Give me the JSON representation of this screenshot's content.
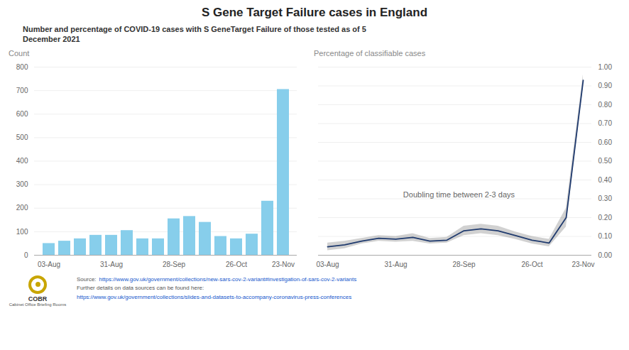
{
  "title": "S Gene Target Failure cases in England",
  "subtitle": "Number and percentage of COVID-19 cases with S GeneTarget Failure of those tested as of 5\nDecember 2021",
  "footer": [
    [
      "Source:",
      "https://www.gov.uk/government/collections/new-sars-cov-2-variant#investigation-of-sars-cov-2-variants"
    ],
    [
      "Further details on data sources can be found here:"
    ],
    [
      "https://www.gov.uk/government/collections/slides-and-datasets-to-accompany-coronavirus-press-conferences"
    ]
  ],
  "logo": [
    "COBR",
    "Cabinet Office Briefing Rooms"
  ],
  "chart_data": [
    {
      "type": "bar",
      "categories": [
        "03-Aug",
        null,
        null,
        null,
        "31-Aug",
        null,
        null,
        null,
        "28-Sep",
        null,
        null,
        null,
        "26-Oct",
        null,
        null,
        "23-Nov"
      ],
      "values": [
        50,
        60,
        70,
        85,
        85,
        105,
        70,
        70,
        155,
        165,
        140,
        80,
        70,
        90,
        230,
        705
      ],
      "color": "#87CEEB",
      "ylim": [
        0,
        800
      ],
      "yticks": [
        0,
        100,
        200,
        300,
        400,
        500,
        600,
        700,
        800
      ],
      "ylabel": "Count",
      "grid": true
    },
    {
      "type": "line",
      "categories": [
        "03-Aug",
        null,
        null,
        null,
        "31-Aug",
        null,
        null,
        null,
        "28-Sep",
        null,
        null,
        null,
        "26-Oct",
        null,
        null,
        "23-Nov"
      ],
      "values": [
        0.045,
        0.055,
        0.075,
        0.09,
        0.085,
        0.095,
        0.075,
        0.08,
        0.13,
        0.14,
        0.13,
        0.105,
        0.08,
        0.065,
        0.2,
        0.93
      ],
      "upper": [
        0.065,
        0.075,
        0.09,
        0.105,
        0.1,
        0.115,
        0.09,
        0.095,
        0.155,
        0.165,
        0.155,
        0.125,
        0.1,
        0.085,
        0.25,
        0.96
      ],
      "lower": [
        0.025,
        0.035,
        0.06,
        0.075,
        0.07,
        0.075,
        0.06,
        0.065,
        0.105,
        0.115,
        0.105,
        0.085,
        0.06,
        0.045,
        0.15,
        0.9
      ],
      "color": "#1f3a6e",
      "ylim": [
        0.0,
        1.0
      ],
      "yticks": [
        {
          "value": 0.0,
          "label": "0.00"
        },
        {
          "value": 0.1,
          "label": "0.10"
        },
        {
          "value": 0.2,
          "label": "0.20"
        },
        {
          "value": 0.3,
          "label": "0.30"
        },
        {
          "value": 0.4,
          "label": "0.40"
        },
        {
          "value": 0.5,
          "label": "0.50"
        },
        {
          "value": 0.6,
          "label": "0.60"
        },
        {
          "value": 0.7,
          "label": "0.70"
        },
        {
          "value": 0.8,
          "label": "0.80"
        },
        {
          "value": 0.9,
          "label": "0.90"
        },
        {
          "value": 1.0,
          "label": "1.00"
        }
      ],
      "ylabel": "Percentage of classifiable cases",
      "annotations": [
        "Doubling time between 2-3 days"
      ],
      "grid": true
    }
  ]
}
